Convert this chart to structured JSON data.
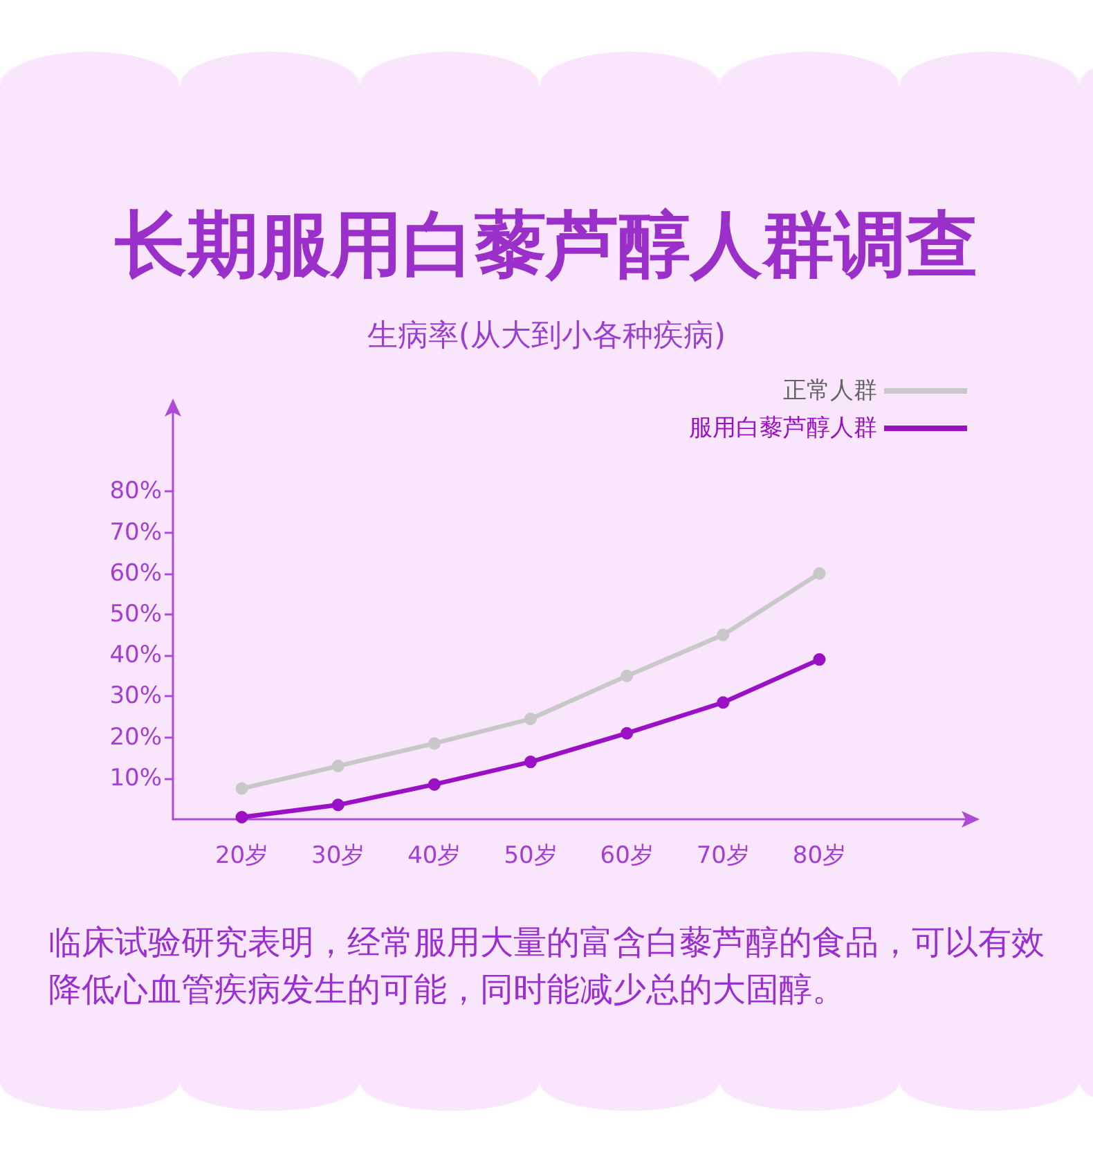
{
  "chart_data": {
    "type": "line",
    "title": "长期服用白藜芦醇人群调查",
    "subtitle": "生病率(从大到小各种疾病)",
    "categories": [
      "20岁",
      "30岁",
      "40岁",
      "50岁",
      "60岁",
      "70岁",
      "80岁"
    ],
    "series": [
      {
        "name": "正常人群",
        "color": "#c8c8c8",
        "values": [
          7.5,
          13,
          18.5,
          24.5,
          35,
          45,
          60
        ]
      },
      {
        "name": "服用白藜芦醇人群",
        "color": "#9a10c4",
        "values": [
          0.5,
          3.5,
          8.5,
          14,
          21,
          28.5,
          39
        ]
      }
    ],
    "ylim": [
      0,
      100
    ],
    "yticks": [
      {
        "value": 10,
        "label": "10%"
      },
      {
        "value": 20,
        "label": "20%"
      },
      {
        "value": 30,
        "label": "30%"
      },
      {
        "value": 40,
        "label": "40%"
      },
      {
        "value": 50,
        "label": "50%"
      },
      {
        "value": 60,
        "label": "60%"
      },
      {
        "value": 70,
        "label": "70%"
      },
      {
        "value": 80,
        "label": "80%"
      }
    ],
    "grid": false,
    "legend": "top right",
    "marker": "circle",
    "line_style": "solid",
    "annotations": [
      "临床试验研究表明，经常服用大量的富含白藜芦醇的食品，可以有效降低心血管疾病发生的可能，同时能减少总的大固醇。"
    ]
  }
}
